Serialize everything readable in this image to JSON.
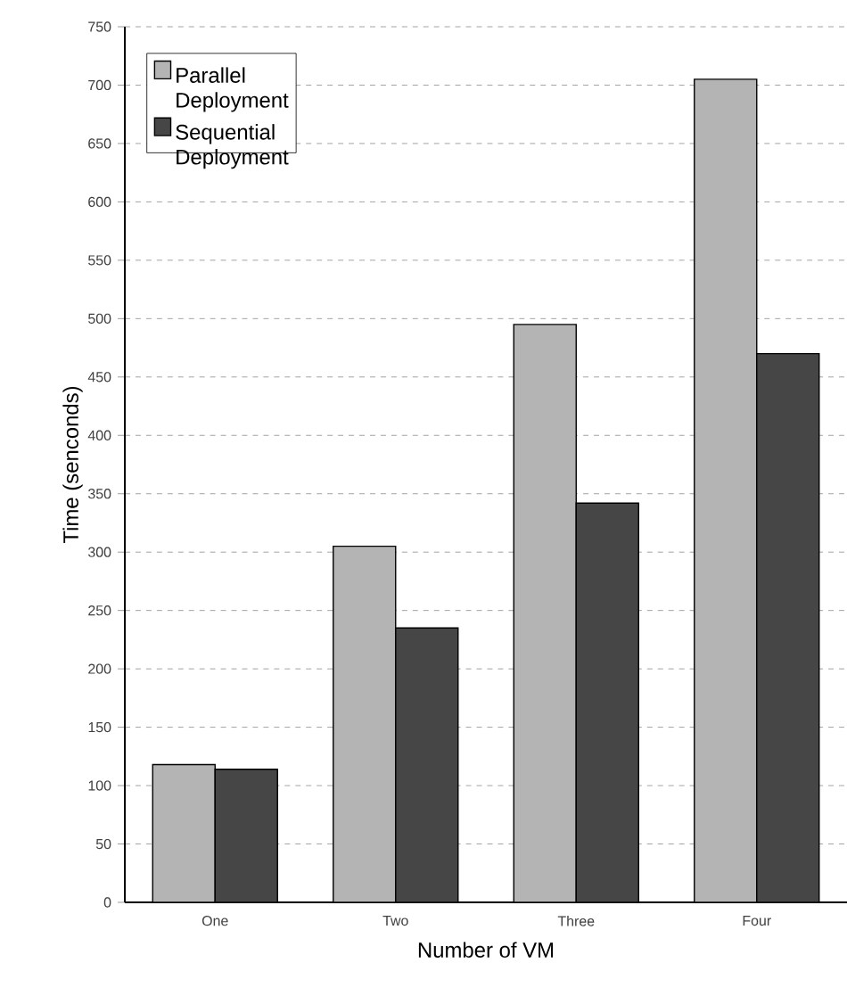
{
  "chart_data": {
    "type": "bar",
    "xlabel": "Number of VM",
    "ylabel": "Time (senconds)",
    "categories": [
      "One",
      "Two",
      "Three",
      "Four"
    ],
    "series": [
      {
        "name": "Parallel Deployment",
        "color": "#b4b4b4",
        "values": [
          118,
          305,
          495,
          705
        ]
      },
      {
        "name": "Sequential Deployment",
        "color": "#464646",
        "values": [
          114,
          235,
          342,
          470
        ]
      }
    ],
    "ylim": [
      0,
      750
    ],
    "yticks": [
      0,
      50,
      100,
      150,
      200,
      250,
      300,
      350,
      400,
      450,
      500,
      550,
      600,
      650,
      700,
      750
    ],
    "grid": "y",
    "legend": "top left"
  }
}
